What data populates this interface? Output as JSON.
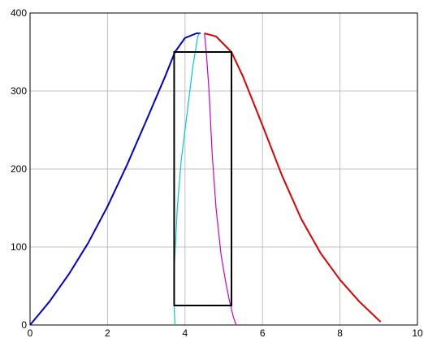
{
  "chart_data": {
    "type": "line",
    "title": "",
    "xlabel": "",
    "ylabel": "",
    "xlim": [
      0,
      10
    ],
    "ylim": [
      0,
      400
    ],
    "grid": true,
    "x_ticks": [
      "0",
      "2",
      "4",
      "6",
      "8",
      "10"
    ],
    "y_ticks": [
      "0",
      "100",
      "200",
      "300",
      "400"
    ],
    "colors": {
      "rising": "#0000cc",
      "falling": "#dd0000",
      "cyan": "#00cccc",
      "magenta": "#cc00cc",
      "box": "#000000",
      "grid": "#c0c0c0"
    },
    "series": [
      {
        "color_key": "rising",
        "points": [
          [
            0,
            0
          ],
          [
            0.5,
            30
          ],
          [
            1,
            65
          ],
          [
            1.5,
            105
          ],
          [
            2,
            152
          ],
          [
            2.5,
            205
          ],
          [
            3,
            262
          ],
          [
            3.5,
            320
          ],
          [
            3.74,
            350
          ],
          [
            4,
            368
          ],
          [
            4.3,
            374
          ],
          [
            4.4,
            374
          ]
        ]
      },
      {
        "color_key": "falling",
        "points": [
          [
            4.5,
            374
          ],
          [
            4.8,
            370
          ],
          [
            5.2,
            350
          ],
          [
            5.5,
            318
          ],
          [
            6,
            256
          ],
          [
            6.5,
            192
          ],
          [
            7,
            136
          ],
          [
            7.5,
            92
          ],
          [
            8,
            58
          ],
          [
            8.5,
            30
          ],
          [
            9.05,
            4
          ]
        ]
      },
      {
        "color_key": "cyan",
        "points": [
          [
            3.74,
            0
          ],
          [
            3.72,
            25
          ],
          [
            3.72,
            70
          ],
          [
            3.8,
            150
          ],
          [
            3.9,
            210
          ],
          [
            4.05,
            270
          ],
          [
            4.2,
            330
          ],
          [
            4.33,
            370
          ],
          [
            4.38,
            374
          ]
        ]
      },
      {
        "color_key": "magenta",
        "points": [
          [
            4.5,
            374
          ],
          [
            4.55,
            350
          ],
          [
            4.62,
            300
          ],
          [
            4.7,
            220
          ],
          [
            4.8,
            150
          ],
          [
            4.93,
            90
          ],
          [
            5.05,
            55
          ],
          [
            5.15,
            30
          ],
          [
            5.25,
            10
          ],
          [
            5.32,
            0
          ]
        ]
      }
    ],
    "rectangle": {
      "x": [
        3.72,
        5.2
      ],
      "y": [
        25,
        350
      ]
    }
  }
}
